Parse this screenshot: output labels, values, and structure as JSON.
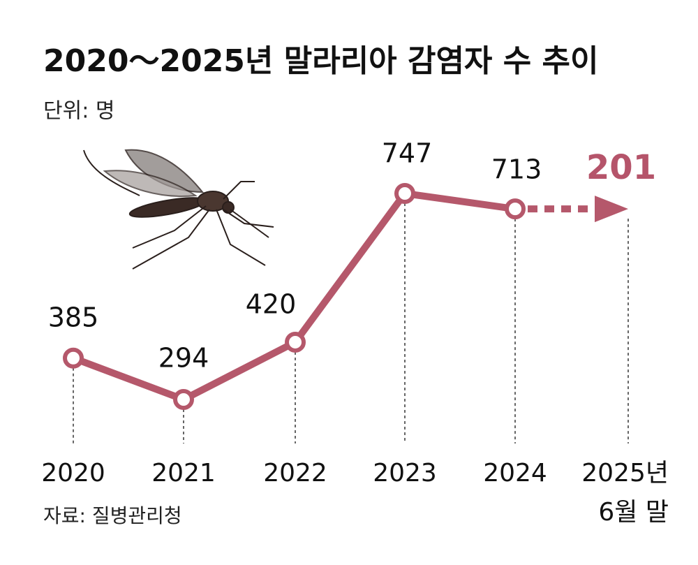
{
  "chart_data": {
    "type": "line",
    "title": "2020～2025년 말라리아 감염자 수 추이",
    "subtitle": "단위: 명",
    "source": "자료: 질병관리청",
    "categories": [
      "2020",
      "2021",
      "2022",
      "2023",
      "2024",
      "2025년\n6월 말"
    ],
    "values": [
      385,
      294,
      420,
      747,
      713,
      201
    ],
    "color": "#b5586b",
    "highlight_color": "#b5546a"
  }
}
